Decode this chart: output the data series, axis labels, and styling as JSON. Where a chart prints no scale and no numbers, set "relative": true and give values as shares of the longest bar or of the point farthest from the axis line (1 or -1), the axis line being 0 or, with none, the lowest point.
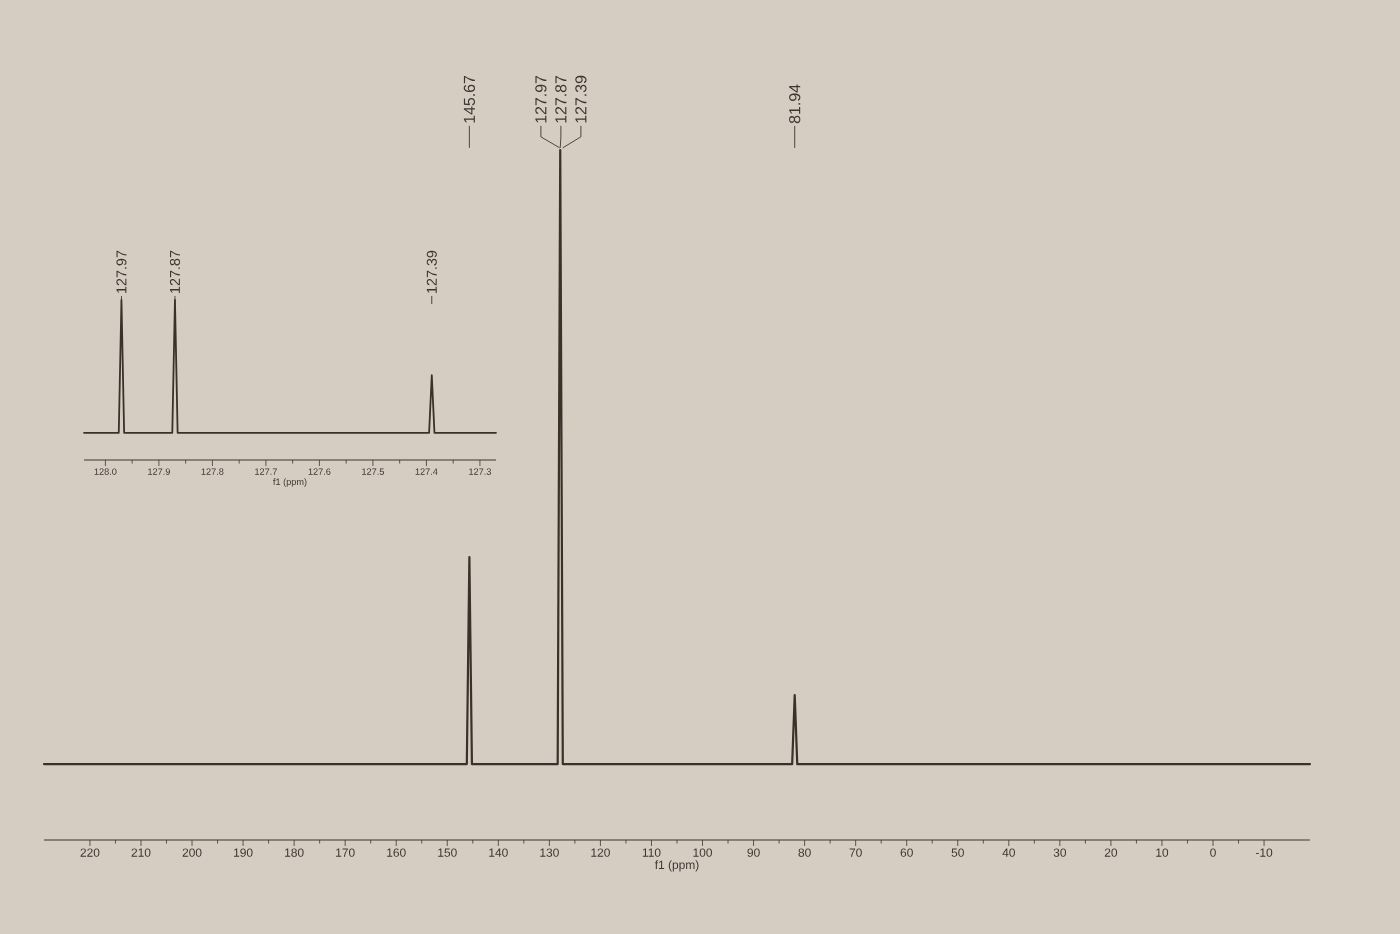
{
  "chart_data": [
    {
      "type": "line",
      "relative": true,
      "xlabel": "f1 (ppm)",
      "xlim": [
        229,
        -19
      ],
      "xticks": [
        220,
        210,
        200,
        190,
        180,
        170,
        160,
        150,
        140,
        130,
        120,
        110,
        100,
        90,
        80,
        70,
        60,
        50,
        40,
        30,
        20,
        10,
        0,
        -10
      ],
      "x": [
        229,
        146.17,
        145.67,
        145.17,
        128.37,
        127.87,
        127.37,
        82.44,
        81.94,
        81.44,
        -19
      ],
      "values": [
        0.11,
        0.11,
        0.41,
        0.11,
        0.11,
        1,
        0.11,
        0.11,
        0.21,
        0.11,
        0.11
      ],
      "color": "#3b302a",
      "annotations": [
        {
          "text": "145.67",
          "x": 145.67
        },
        {
          "text": "127.97",
          "x": 127.97
        },
        {
          "text": "127.87",
          "x": 127.87
        },
        {
          "text": "127.39",
          "x": 127.39
        },
        {
          "text": "81.94",
          "x": 81.94
        }
      ]
    },
    {
      "type": "line",
      "relative": true,
      "xlabel": "f1 (ppm)",
      "xlim": [
        128.04,
        127.27
      ],
      "xticks": [
        {
          "value": 128,
          "label": "128.0"
        },
        127.9,
        127.8,
        127.7,
        127.6,
        127.5,
        127.4,
        127.3
      ],
      "x": [
        128.04,
        127.975,
        127.97,
        127.965,
        127.875,
        127.87,
        127.865,
        127.395,
        127.39,
        127.385,
        127.27
      ],
      "values": [
        0.17,
        0.17,
        1,
        0.17,
        0.17,
        1,
        0.17,
        0.17,
        0.53,
        0.17,
        0.17
      ],
      "color": "#3b302a",
      "annotations": [
        {
          "text": "127.97",
          "x": 127.97
        },
        {
          "text": "127.87",
          "x": 127.87
        },
        {
          "text": "127.39",
          "x": 127.39
        }
      ]
    }
  ]
}
